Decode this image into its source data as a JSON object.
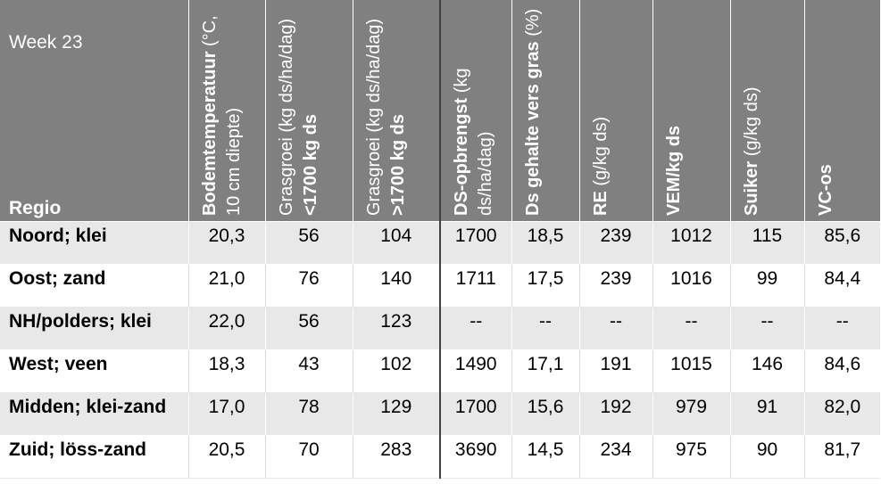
{
  "header": {
    "week": "Week 23",
    "regio": "Regio",
    "columns": [
      {
        "bold": "Bodemtemperatuur",
        "normal": "(°C, 10 cm diepte)"
      },
      {
        "normal": "Grasgroei (kg ds/ha/dag)",
        "bold": "<1700 kg ds"
      },
      {
        "normal": "Grasgroei (kg ds/ha/dag)",
        "bold": ">1700 kg ds"
      },
      {
        "bold": "DS-opbrengst",
        "normal": "(kg ds/ha/dag)"
      },
      {
        "bold": "Ds gehalte vers gras",
        "normal": "(%)"
      },
      {
        "bold": "RE",
        "normal": "(g/kg ds)"
      },
      {
        "bold": "VEM/kg ds",
        "normal": ""
      },
      {
        "bold": "Suiker",
        "normal": "(g/kg ds)"
      },
      {
        "bold": "VC-os",
        "normal": ""
      }
    ]
  },
  "rows": [
    {
      "region": "Noord; klei",
      "values": [
        "20,3",
        "56",
        "104",
        "1700",
        "18,5",
        "239",
        "1012",
        "115",
        "85,6"
      ]
    },
    {
      "region": "Oost; zand",
      "values": [
        "21,0",
        "76",
        "140",
        "1711",
        "17,5",
        "239",
        "1016",
        "99",
        "84,4"
      ]
    },
    {
      "region": "NH/polders; klei",
      "values": [
        "22,0",
        "56",
        "123",
        "--",
        "--",
        "--",
        "--",
        "--",
        "--"
      ]
    },
    {
      "region": "West; veen",
      "values": [
        "18,3",
        "43",
        "102",
        "1490",
        "17,1",
        "191",
        "1015",
        "146",
        "84,6"
      ]
    },
    {
      "region": "Midden; klei-zand",
      "values": [
        "17,0",
        "78",
        "129",
        "1700",
        "15,6",
        "192",
        "979",
        "91",
        "82,0"
      ]
    },
    {
      "region": "Zuid; löss-zand",
      "values": [
        "20,5",
        "70",
        "283",
        "3690",
        "14,5",
        "234",
        "975",
        "90",
        "81,7"
      ]
    }
  ]
}
